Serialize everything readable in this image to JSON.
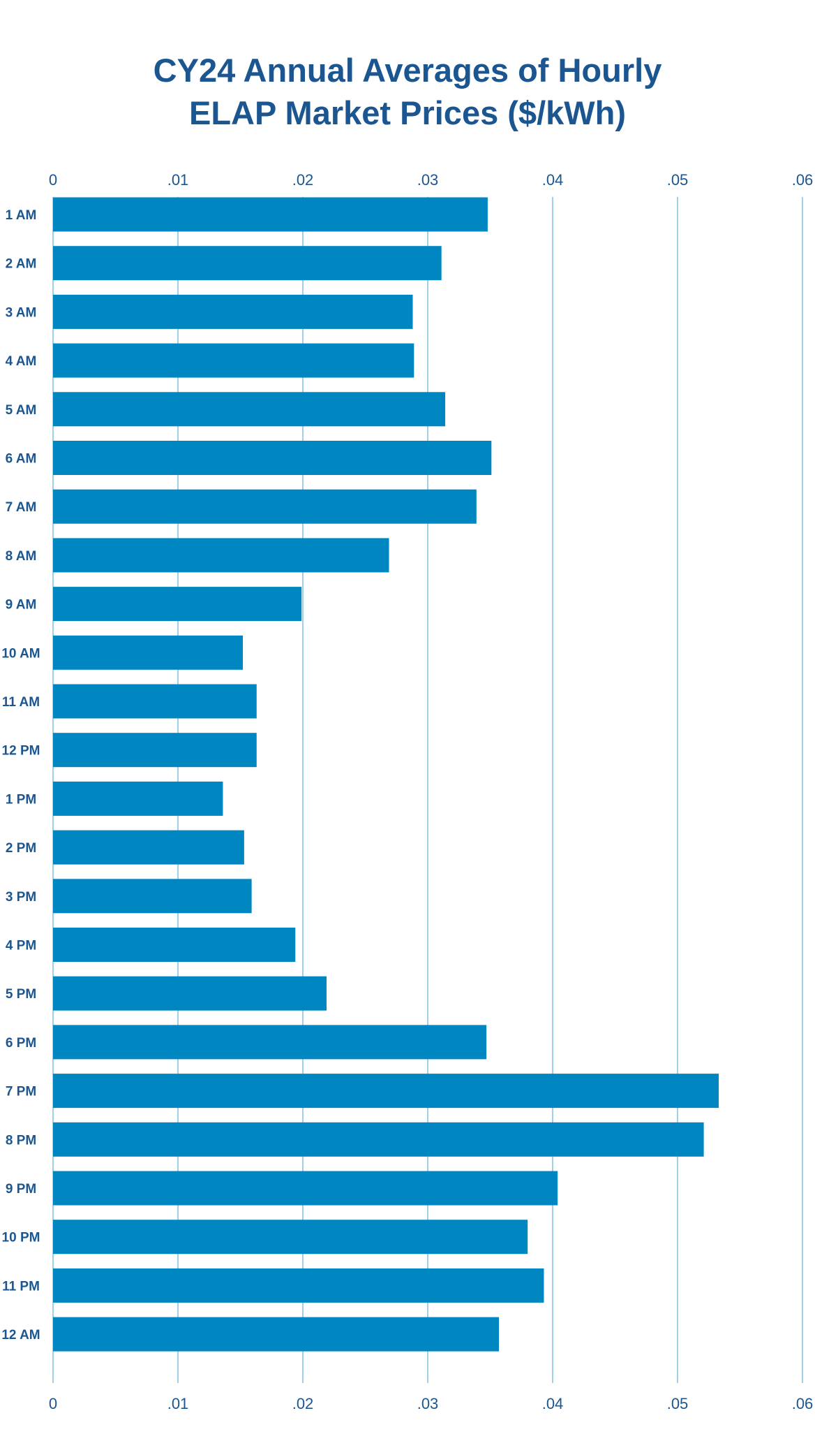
{
  "chart_data": {
    "type": "bar",
    "orientation": "horizontal",
    "title_lines": [
      "CY24 Annual Averages of Hourly",
      "ELAP Market Prices ($/kWh)"
    ],
    "categories": [
      "1 AM",
      "2 AM",
      "3 AM",
      "4 AM",
      "5 AM",
      "6 AM",
      "7 AM",
      "8 AM",
      "9 AM",
      "10 AM",
      "11 AM",
      "12 PM",
      "1 PM",
      "2 PM",
      "3 PM",
      "4 PM",
      "5 PM",
      "6 PM",
      "7 PM",
      "8 PM",
      "9 PM",
      "10 PM",
      "11 PM",
      "12 AM"
    ],
    "values": [
      0.0348,
      0.0311,
      0.0288,
      0.0289,
      0.0314,
      0.0351,
      0.0339,
      0.0269,
      0.0199,
      0.0152,
      0.0163,
      0.0163,
      0.0136,
      0.0153,
      0.0159,
      0.0194,
      0.0219,
      0.0347,
      0.0533,
      0.0521,
      0.0404,
      0.038,
      0.0393,
      0.0357
    ],
    "xlim": [
      0,
      0.06
    ],
    "x_ticks": [
      0,
      0.01,
      0.02,
      0.03,
      0.04,
      0.05,
      0.06
    ],
    "x_tick_labels": [
      "0",
      ".01",
      ".02",
      ".03",
      ".04",
      ".05",
      ".06"
    ],
    "x_axis_top_and_bottom": true,
    "grid": true,
    "legend": "none",
    "colors": {
      "bar": "#0086c0",
      "grid": "#9fd0e6",
      "text": "#1b5691"
    }
  }
}
